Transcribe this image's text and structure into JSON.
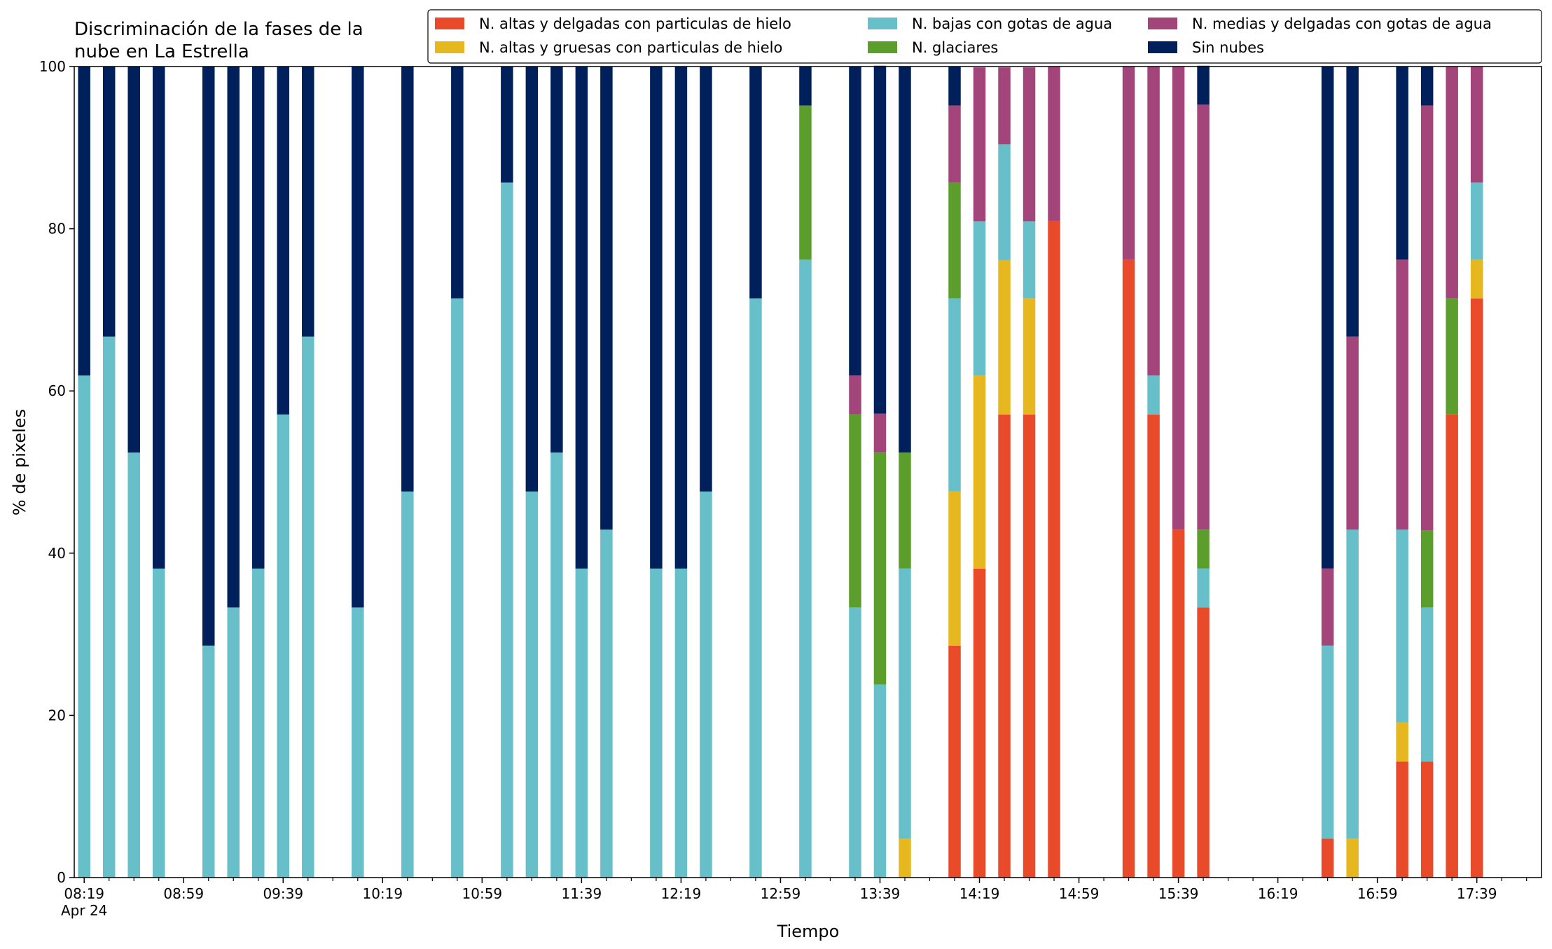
{
  "chart_data": {
    "type": "bar",
    "stacked": true,
    "title": "Discriminación de la fases de la nube en La Estrella",
    "title_lines": [
      "Discriminación de la fases de la",
      "nube en La Estrella"
    ],
    "xlabel": "Tiempo",
    "ylabel": "% de pixeles",
    "ylim": [
      0,
      100
    ],
    "yticks": [
      0,
      20,
      40,
      60,
      80,
      100
    ],
    "x_date_label": "Apr 24",
    "xlim_minutes": [
      -4,
      586
    ],
    "x_major_ticks": [
      {
        "t": 0,
        "label": "08:19"
      },
      {
        "t": 40,
        "label": "08:59"
      },
      {
        "t": 80,
        "label": "09:39"
      },
      {
        "t": 120,
        "label": "10:19"
      },
      {
        "t": 160,
        "label": "10:59"
      },
      {
        "t": 200,
        "label": "11:39"
      },
      {
        "t": 240,
        "label": "12:19"
      },
      {
        "t": 280,
        "label": "12:59"
      },
      {
        "t": 320,
        "label": "13:39"
      },
      {
        "t": 360,
        "label": "14:19"
      },
      {
        "t": 400,
        "label": "14:59"
      },
      {
        "t": 440,
        "label": "15:39"
      },
      {
        "t": 480,
        "label": "16:19"
      },
      {
        "t": 520,
        "label": "16:59"
      },
      {
        "t": 560,
        "label": "17:39"
      }
    ],
    "x_minor_ticks": [
      10,
      20,
      30,
      50,
      60,
      70,
      90,
      100,
      110,
      130,
      140,
      150,
      170,
      180,
      190,
      210,
      220,
      230,
      250,
      260,
      270,
      290,
      300,
      310,
      330,
      340,
      350,
      370,
      380,
      390,
      410,
      420,
      430,
      450,
      460,
      470,
      490,
      500,
      510,
      530,
      540,
      550,
      570,
      580
    ],
    "legend": {
      "placement": "top-right",
      "items": [
        {
          "name": "N. altas y delgadas con particulas de hielo",
          "color": "#e84a2a"
        },
        {
          "name": "N. altas y gruesas con particulas de hielo",
          "color": "#e6b71e"
        },
        {
          "name": "N. bajas con gotas de agua",
          "color": "#67bfca"
        },
        {
          "name": "N. glaciares",
          "color": "#5c9e2c"
        },
        {
          "name": "N. medias y delgadas con gotas de agua",
          "color": "#a3457b"
        },
        {
          "name": "Sin nubes",
          "color": "#00205b"
        }
      ]
    },
    "series_order_bottom_to_top": [
      "N. altas y delgadas con particulas de hielo",
      "N. altas y gruesas con particulas de hielo",
      "N. bajas con gotas de agua",
      "N. glaciares",
      "N. medias y delgadas con gotas de agua",
      "Sin nubes"
    ],
    "bars": [
      {
        "time": "08:19",
        "values": [
          0,
          0,
          61.9,
          0,
          0,
          38.1
        ]
      },
      {
        "time": "08:29",
        "values": [
          0,
          0,
          66.7,
          0,
          0,
          33.3
        ]
      },
      {
        "time": "08:39",
        "values": [
          0,
          0,
          52.4,
          0,
          0,
          47.6
        ]
      },
      {
        "time": "08:49",
        "values": [
          0,
          0,
          38.1,
          0,
          0,
          61.9
        ]
      },
      {
        "time": "09:09",
        "values": [
          0,
          0,
          28.6,
          0,
          0,
          71.4
        ]
      },
      {
        "time": "09:19",
        "values": [
          0,
          0,
          33.3,
          0,
          0,
          66.7
        ]
      },
      {
        "time": "09:29",
        "values": [
          0,
          0,
          38.1,
          0,
          0,
          61.9
        ]
      },
      {
        "time": "09:39",
        "values": [
          0,
          0,
          57.1,
          0,
          0,
          42.9
        ]
      },
      {
        "time": "09:49",
        "values": [
          0,
          0,
          66.7,
          0,
          0,
          33.3
        ]
      },
      {
        "time": "10:09",
        "values": [
          0,
          0,
          33.3,
          0,
          0,
          66.7
        ]
      },
      {
        "time": "10:29",
        "values": [
          0,
          0,
          47.6,
          0,
          0,
          52.4
        ]
      },
      {
        "time": "10:49",
        "values": [
          0,
          0,
          71.4,
          0,
          0,
          28.6
        ]
      },
      {
        "time": "11:09",
        "values": [
          0,
          0,
          85.7,
          0,
          0,
          14.3
        ]
      },
      {
        "time": "11:19",
        "values": [
          0,
          0,
          47.6,
          0,
          0,
          52.4
        ]
      },
      {
        "time": "11:29",
        "values": [
          0,
          0,
          52.4,
          0,
          0,
          47.6
        ]
      },
      {
        "time": "11:39",
        "values": [
          0,
          0,
          38.1,
          0,
          0,
          61.9
        ]
      },
      {
        "time": "11:49",
        "values": [
          0,
          0,
          42.9,
          0,
          0,
          57.1
        ]
      },
      {
        "time": "12:09",
        "values": [
          0,
          0,
          38.1,
          0,
          0,
          61.9
        ]
      },
      {
        "time": "12:19",
        "values": [
          0,
          0,
          38.1,
          0,
          0,
          61.9
        ]
      },
      {
        "time": "12:29",
        "values": [
          0,
          0,
          47.6,
          0,
          0,
          52.4
        ]
      },
      {
        "time": "12:49",
        "values": [
          0,
          0,
          71.4,
          0,
          0,
          28.6
        ]
      },
      {
        "time": "13:09",
        "values": [
          0,
          0,
          76.2,
          19.0,
          0,
          4.8
        ]
      },
      {
        "time": "13:29",
        "values": [
          0,
          0,
          33.3,
          23.8,
          4.8,
          38.1
        ]
      },
      {
        "time": "13:39",
        "values": [
          0,
          0,
          23.8,
          28.6,
          4.8,
          42.9
        ]
      },
      {
        "time": "13:49",
        "values": [
          0,
          4.8,
          33.3,
          14.3,
          0,
          47.6
        ]
      },
      {
        "time": "14:09",
        "values": [
          28.6,
          19.0,
          23.8,
          14.3,
          9.5,
          4.8
        ]
      },
      {
        "time": "14:19",
        "values": [
          38.1,
          23.8,
          19.0,
          0,
          19.0,
          0
        ]
      },
      {
        "time": "14:29",
        "values": [
          57.1,
          19.0,
          14.3,
          0,
          9.5,
          0
        ]
      },
      {
        "time": "14:39",
        "values": [
          57.1,
          14.3,
          9.5,
          0,
          19.0,
          0
        ]
      },
      {
        "time": "14:49",
        "values": [
          81.0,
          0,
          0,
          0,
          19.0,
          0
        ]
      },
      {
        "time": "15:19",
        "values": [
          76.2,
          0,
          0,
          0,
          23.8,
          0
        ]
      },
      {
        "time": "15:29",
        "values": [
          57.1,
          0,
          4.8,
          0,
          38.1,
          0
        ]
      },
      {
        "time": "15:39",
        "values": [
          42.9,
          0,
          0,
          0,
          57.1,
          0
        ]
      },
      {
        "time": "15:49",
        "values": [
          33.3,
          0,
          4.8,
          4.8,
          52.4,
          4.8
        ]
      },
      {
        "time": "16:39",
        "values": [
          4.8,
          0,
          23.8,
          0,
          9.5,
          61.9
        ]
      },
      {
        "time": "16:49",
        "values": [
          0,
          4.8,
          38.1,
          0,
          23.8,
          33.3
        ]
      },
      {
        "time": "17:09",
        "values": [
          14.3,
          4.8,
          23.8,
          0,
          33.3,
          23.8
        ]
      },
      {
        "time": "17:19",
        "values": [
          14.3,
          0,
          19.0,
          9.5,
          52.4,
          4.8
        ]
      },
      {
        "time": "17:29",
        "values": [
          57.1,
          0,
          0,
          14.3,
          28.6,
          0
        ]
      },
      {
        "time": "17:39",
        "values": [
          71.4,
          4.8,
          9.5,
          0,
          14.3,
          0
        ]
      }
    ]
  }
}
